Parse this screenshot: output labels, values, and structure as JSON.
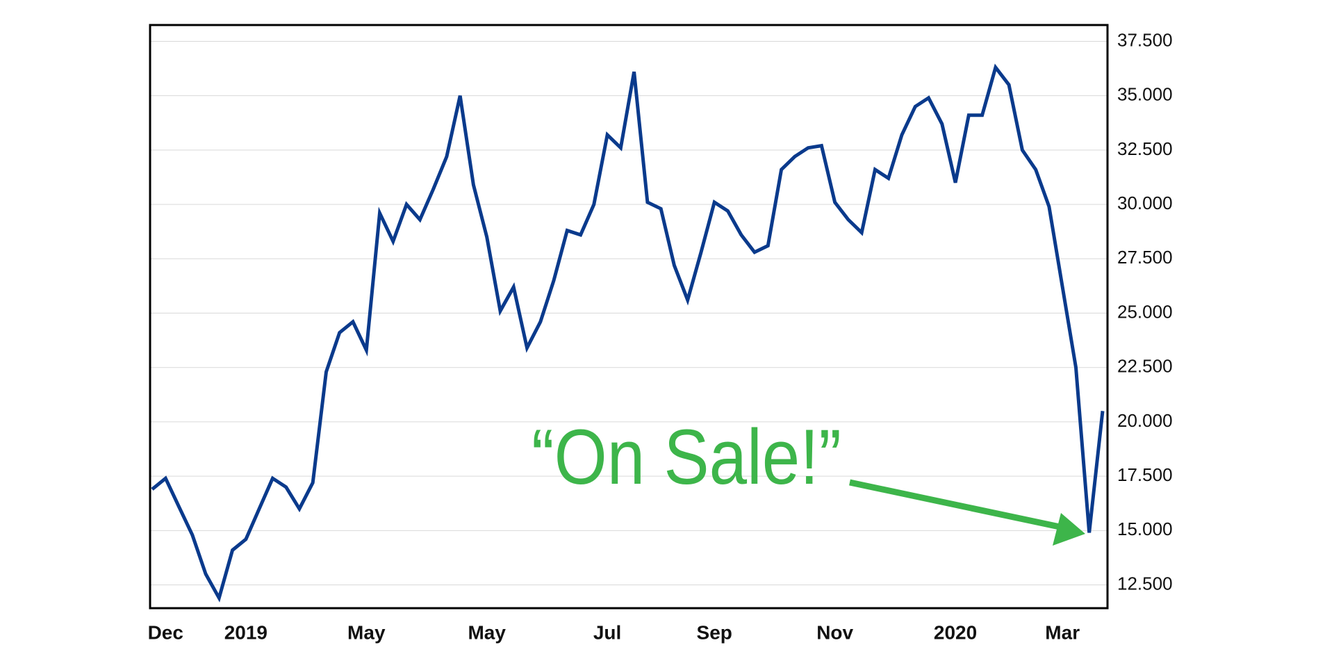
{
  "chart_data": {
    "type": "line",
    "annotation": "“On Sale!”",
    "categories": [
      null,
      "Dec",
      null,
      null,
      null,
      null,
      null,
      "2019",
      null,
      null,
      null,
      null,
      null,
      null,
      null,
      null,
      "May",
      null,
      null,
      null,
      null,
      null,
      null,
      null,
      null,
      "May",
      null,
      null,
      null,
      null,
      null,
      null,
      null,
      null,
      "Jul",
      null,
      null,
      null,
      null,
      null,
      null,
      null,
      "Sep",
      null,
      null,
      null,
      null,
      null,
      null,
      null,
      null,
      "Nov",
      null,
      null,
      null,
      null,
      null,
      null,
      null,
      null,
      "2020",
      null,
      null,
      null,
      null,
      null,
      null,
      null,
      "Mar",
      null,
      null,
      null
    ],
    "values": [
      16.9,
      17.4,
      16.1,
      14.8,
      13.0,
      11.9,
      14.1,
      14.6,
      16.0,
      17.4,
      17.0,
      16.0,
      17.2,
      22.3,
      24.1,
      24.6,
      23.3,
      29.6,
      28.3,
      30.0,
      29.3,
      30.7,
      32.2,
      35.0,
      30.9,
      28.5,
      25.1,
      26.2,
      23.4,
      24.6,
      26.5,
      28.8,
      28.6,
      30.0,
      33.2,
      32.6,
      36.1,
      30.1,
      29.8,
      27.2,
      25.6,
      27.8,
      30.1,
      29.7,
      28.6,
      27.8,
      28.1,
      31.6,
      32.2,
      32.6,
      32.7,
      30.1,
      29.3,
      28.7,
      31.6,
      31.2,
      33.2,
      34.5,
      34.9,
      33.7,
      31.0,
      34.1,
      34.1,
      36.3,
      35.5,
      32.5,
      31.6,
      29.9,
      26.2,
      22.5,
      14.9,
      20.5
    ],
    "color": "#0a3a8c",
    "ylim": [
      11.43,
      38.25
    ],
    "yticks": [
      {
        "value": 12.5,
        "label": "12.500"
      },
      {
        "value": 15,
        "label": "15.000"
      },
      {
        "value": 17.5,
        "label": "17.500"
      },
      {
        "value": 20,
        "label": "20.000"
      },
      {
        "value": 22.5,
        "label": "22.500"
      },
      {
        "value": 25,
        "label": "25.000"
      },
      {
        "value": 27.5,
        "label": "27.500"
      },
      {
        "value": 30,
        "label": "30.000"
      },
      {
        "value": 32.5,
        "label": "32.500"
      },
      {
        "value": 35,
        "label": "35.000"
      },
      {
        "value": 37.5,
        "label": "37.500"
      }
    ],
    "grid": true
  }
}
